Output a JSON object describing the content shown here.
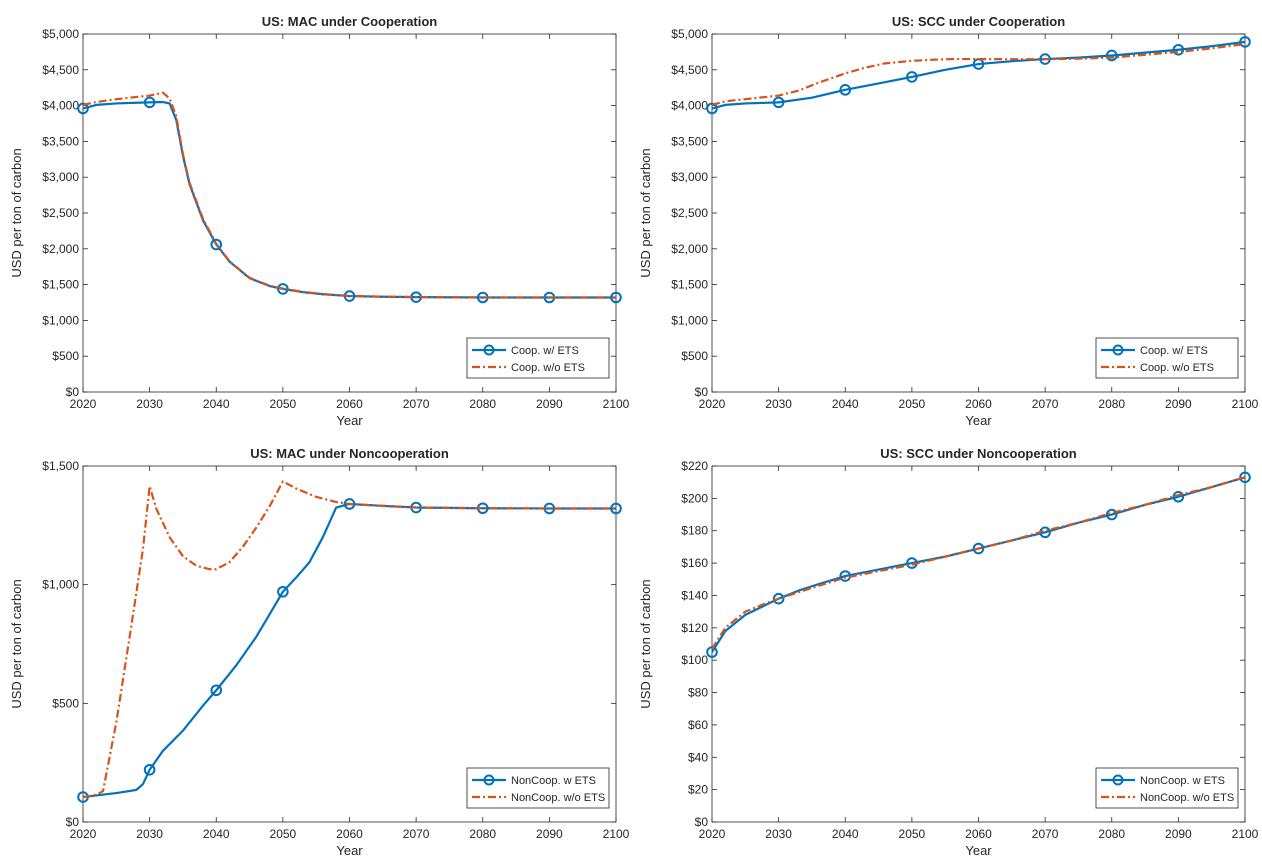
{
  "colors": {
    "series_with_ets": "#0072BD",
    "series_without_ets": "#D95319",
    "axes": "#262626",
    "grid": "none"
  },
  "chart_data": [
    {
      "type": "line",
      "title": "US: MAC under Cooperation",
      "xlabel": "Year",
      "ylabel": "USD per ton of carbon",
      "xlim": [
        2020,
        2100
      ],
      "ylim": [
        0,
        5000
      ],
      "xticks": [
        2020,
        2030,
        2040,
        2050,
        2060,
        2070,
        2080,
        2090,
        2100
      ],
      "xtick_labels": [
        "2020",
        "2030",
        "2040",
        "2050",
        "2060",
        "2070",
        "2080",
        "2090",
        "2100"
      ],
      "yticks": [
        0,
        500,
        1000,
        1500,
        2000,
        2500,
        3000,
        3500,
        4000,
        4500,
        5000
      ],
      "ytick_labels": [
        "$0",
        "$500",
        "$1,000",
        "$1,500",
        "$2,000",
        "$2,500",
        "$3,000",
        "$3,500",
        "$4,000",
        "$4,500",
        "$5,000"
      ],
      "legend_position": "bottom-right",
      "grid": false,
      "series": [
        {
          "name": "Coop. w/ ETS",
          "style": "solid-circle",
          "x": [
            2020,
            2022,
            2025,
            2028,
            2030,
            2032,
            2033,
            2034,
            2035,
            2036,
            2038,
            2040,
            2042,
            2045,
            2048,
            2050,
            2053,
            2056,
            2060,
            2065,
            2070,
            2080,
            2090,
            2100
          ],
          "y": [
            3960,
            4010,
            4030,
            4040,
            4045,
            4050,
            4030,
            3800,
            3300,
            2900,
            2400,
            2060,
            1820,
            1590,
            1480,
            1440,
            1395,
            1365,
            1340,
            1330,
            1325,
            1320,
            1320,
            1320
          ],
          "markers_x": [
            2020,
            2030,
            2040,
            2050,
            2060,
            2070,
            2080,
            2090,
            2100
          ],
          "markers_y": [
            3960,
            4045,
            2060,
            1440,
            1340,
            1325,
            1320,
            1320,
            1320
          ]
        },
        {
          "name": "Coop. w/o ETS",
          "style": "dashdot",
          "x": [
            2020,
            2022,
            2025,
            2028,
            2030,
            2031,
            2032,
            2033,
            2034,
            2035,
            2036,
            2038,
            2040,
            2042,
            2045,
            2048,
            2050,
            2053,
            2056,
            2060,
            2065,
            2070,
            2080,
            2090,
            2100
          ],
          "y": [
            4010,
            4050,
            4090,
            4120,
            4140,
            4160,
            4180,
            4100,
            3850,
            3320,
            2920,
            2420,
            2070,
            1825,
            1595,
            1485,
            1445,
            1398,
            1368,
            1343,
            1332,
            1326,
            1321,
            1320,
            1320
          ]
        }
      ]
    },
    {
      "type": "line",
      "title": "US: SCC under Cooperation",
      "xlabel": "Year",
      "ylabel": "USD per ton of carbon",
      "xlim": [
        2020,
        2100
      ],
      "ylim": [
        0,
        5000
      ],
      "xticks": [
        2020,
        2030,
        2040,
        2050,
        2060,
        2070,
        2080,
        2090,
        2100
      ],
      "xtick_labels": [
        "2020",
        "2030",
        "2040",
        "2050",
        "2060",
        "2070",
        "2080",
        "2090",
        "2100"
      ],
      "yticks": [
        0,
        500,
        1000,
        1500,
        2000,
        2500,
        3000,
        3500,
        4000,
        4500,
        5000
      ],
      "ytick_labels": [
        "$0",
        "$500",
        "$1,000",
        "$1,500",
        "$2,000",
        "$2,500",
        "$3,000",
        "$3,500",
        "$4,000",
        "$4,500",
        "$5,000"
      ],
      "legend_position": "bottom-right",
      "grid": false,
      "series": [
        {
          "name": "Coop. w/ ETS",
          "style": "solid-circle",
          "x": [
            2020,
            2022,
            2025,
            2030,
            2035,
            2040,
            2045,
            2050,
            2055,
            2060,
            2065,
            2070,
            2075,
            2080,
            2085,
            2090,
            2095,
            2100
          ],
          "y": [
            3960,
            4010,
            4030,
            4045,
            4110,
            4220,
            4310,
            4400,
            4500,
            4580,
            4620,
            4650,
            4670,
            4700,
            4740,
            4780,
            4830,
            4890
          ],
          "markers_x": [
            2020,
            2030,
            2040,
            2050,
            2060,
            2070,
            2080,
            2090,
            2100
          ],
          "markers_y": [
            3960,
            4045,
            4220,
            4400,
            4580,
            4650,
            4700,
            4780,
            4890
          ]
        },
        {
          "name": "Coop. w/o ETS",
          "style": "dashdot",
          "x": [
            2020,
            2022,
            2025,
            2030,
            2033,
            2036,
            2040,
            2043,
            2046,
            2050,
            2053,
            2056,
            2060,
            2065,
            2070,
            2075,
            2080,
            2085,
            2090,
            2095,
            2100
          ],
          "y": [
            4010,
            4060,
            4090,
            4140,
            4210,
            4320,
            4450,
            4530,
            4590,
            4625,
            4640,
            4650,
            4650,
            4648,
            4648,
            4655,
            4670,
            4710,
            4750,
            4800,
            4860
          ]
        }
      ]
    },
    {
      "type": "line",
      "title": "US: MAC under Noncooperation",
      "xlabel": "Year",
      "ylabel": "USD per ton of carbon",
      "xlim": [
        2020,
        2100
      ],
      "ylim": [
        0,
        1500
      ],
      "xticks": [
        2020,
        2030,
        2040,
        2050,
        2060,
        2070,
        2080,
        2090,
        2100
      ],
      "xtick_labels": [
        "2020",
        "2030",
        "2040",
        "2050",
        "2060",
        "2070",
        "2080",
        "2090",
        "2100"
      ],
      "yticks": [
        0,
        500,
        1000,
        1500
      ],
      "ytick_labels": [
        "$0",
        "$500",
        "$1,000",
        "$1,500"
      ],
      "legend_position": "bottom-right",
      "grid": false,
      "series": [
        {
          "name": "NonCoop. w ETS",
          "style": "solid-circle",
          "x": [
            2020,
            2022,
            2025,
            2028,
            2029,
            2030,
            2032,
            2035,
            2038,
            2040,
            2043,
            2046,
            2050,
            2052,
            2054,
            2056,
            2058,
            2060,
            2065,
            2070,
            2080,
            2090,
            2100
          ],
          "y": [
            105,
            112,
            122,
            135,
            160,
            220,
            300,
            385,
            490,
            555,
            660,
            780,
            970,
            1030,
            1095,
            1200,
            1325,
            1340,
            1332,
            1325,
            1322,
            1321,
            1321
          ],
          "markers_x": [
            2020,
            2030,
            2040,
            2050,
            2060,
            2070,
            2080,
            2090,
            2100
          ],
          "markers_y": [
            105,
            220,
            555,
            970,
            1340,
            1325,
            1322,
            1321,
            1321
          ]
        },
        {
          "name": "NonCoop. w/o ETS",
          "style": "dashdot",
          "x": [
            2020,
            2022,
            2023,
            2025,
            2027,
            2029,
            2030,
            2031,
            2033,
            2035,
            2037,
            2039,
            2040,
            2042,
            2044,
            2046,
            2048,
            2050,
            2052,
            2055,
            2058,
            2060,
            2065,
            2070,
            2080,
            2090,
            2100
          ],
          "y": [
            105,
            115,
            130,
            420,
            780,
            1150,
            1415,
            1320,
            1200,
            1120,
            1080,
            1065,
            1065,
            1095,
            1160,
            1240,
            1330,
            1435,
            1405,
            1370,
            1348,
            1340,
            1332,
            1325,
            1322,
            1321,
            1321
          ]
        }
      ]
    },
    {
      "type": "line",
      "title": "US: SCC under Noncooperation",
      "xlabel": "Year",
      "ylabel": "USD per ton of carbon",
      "xlim": [
        2020,
        2100
      ],
      "ylim": [
        0,
        220
      ],
      "xticks": [
        2020,
        2030,
        2040,
        2050,
        2060,
        2070,
        2080,
        2090,
        2100
      ],
      "xtick_labels": [
        "2020",
        "2030",
        "2040",
        "2050",
        "2060",
        "2070",
        "2080",
        "2090",
        "2100"
      ],
      "yticks": [
        0,
        20,
        40,
        60,
        80,
        100,
        120,
        140,
        160,
        180,
        200,
        220
      ],
      "ytick_labels": [
        "$0",
        "$20",
        "$40",
        "$60",
        "$80",
        "$100",
        "$120",
        "$140",
        "$160",
        "$180",
        "$200",
        "$220"
      ],
      "legend_position": "bottom-right",
      "grid": false,
      "series": [
        {
          "name": "NonCoop. w ETS",
          "style": "solid-circle",
          "x": [
            2020,
            2022,
            2025,
            2028,
            2030,
            2033,
            2036,
            2040,
            2045,
            2050,
            2055,
            2060,
            2065,
            2070,
            2075,
            2080,
            2085,
            2090,
            2095,
            2100
          ],
          "y": [
            105,
            118,
            128,
            134,
            138,
            143,
            147,
            152,
            156,
            160,
            164,
            169,
            174,
            179,
            185,
            190,
            196,
            201,
            207,
            213
          ],
          "markers_x": [
            2020,
            2030,
            2040,
            2050,
            2060,
            2070,
            2080,
            2090,
            2100
          ],
          "markers_y": [
            105,
            138,
            152,
            160,
            169,
            179,
            190,
            201,
            213
          ]
        },
        {
          "name": "NonCoop. w/o ETS",
          "style": "dashdot",
          "x": [
            2020,
            2022,
            2025,
            2028,
            2030,
            2033,
            2036,
            2040,
            2045,
            2050,
            2055,
            2060,
            2065,
            2070,
            2075,
            2080,
            2085,
            2090,
            2095,
            2100
          ],
          "y": [
            107,
            120,
            130,
            135,
            138,
            142,
            146,
            151,
            155,
            159,
            164,
            169,
            174,
            180,
            185,
            191,
            196,
            202,
            207,
            213
          ]
        }
      ]
    }
  ]
}
